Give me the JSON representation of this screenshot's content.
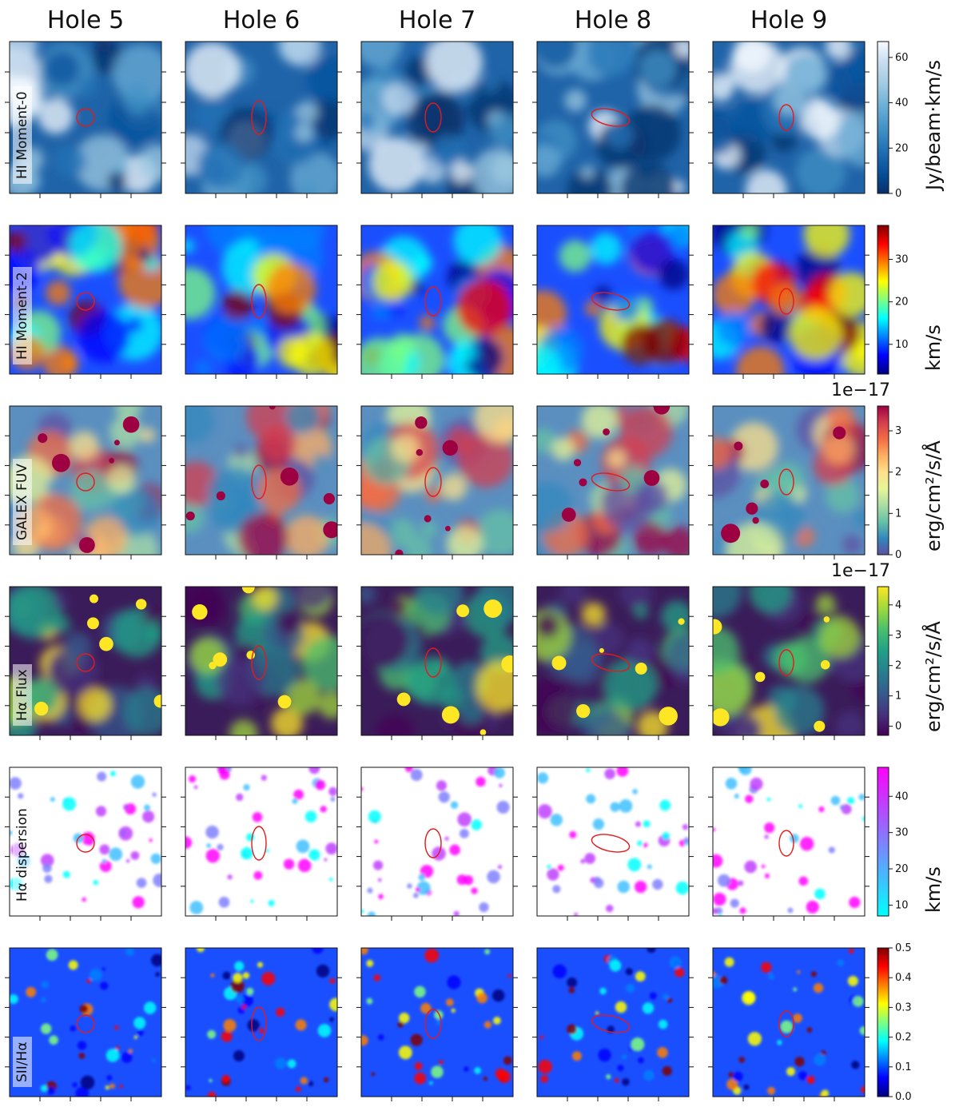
{
  "chart_data": {
    "type": "heatmap",
    "description_columns": [
      "Hole 5",
      "Hole 6",
      "Hole 7",
      "Hole 8",
      "Hole 9"
    ],
    "rows": [
      {
        "label": "HI Moment-0",
        "colormap": "Blues_r",
        "colorbar": {
          "unit": "Jy/beam·km/s",
          "range": [
            0,
            67
          ],
          "ticks": [
            0,
            20,
            40,
            60
          ],
          "tick_labels": [
            "0",
            "20",
            "40",
            "60"
          ],
          "exponent": ""
        }
      },
      {
        "label": "HI Moment-2",
        "colormap": "jet",
        "colorbar": {
          "unit": "km/s",
          "range": [
            3,
            38
          ],
          "ticks": [
            10,
            20,
            30
          ],
          "tick_labels": [
            "10",
            "20",
            "30"
          ],
          "exponent": ""
        }
      },
      {
        "label": "GALEX FUV",
        "colormap": "Spectral_r",
        "colorbar": {
          "unit": "erg/cm²/s/Å",
          "range": [
            0,
            3.6
          ],
          "ticks": [
            0,
            1,
            2,
            3
          ],
          "tick_labels": [
            "0",
            "1",
            "2",
            "3"
          ],
          "exponent": "1e−17"
        }
      },
      {
        "label": "Hα Flux",
        "colormap": "viridis",
        "colorbar": {
          "unit": "erg/cm²/s/Å",
          "range": [
            -0.3,
            4.6
          ],
          "ticks": [
            0,
            1,
            2,
            3,
            4
          ],
          "tick_labels": [
            "0",
            "1",
            "2",
            "3",
            "4"
          ],
          "exponent": "1e−17"
        }
      },
      {
        "label": "Hα dispersion",
        "colormap": "cool",
        "colorbar": {
          "unit": "km/s",
          "range": [
            7,
            48
          ],
          "ticks": [
            10,
            20,
            30,
            40
          ],
          "tick_labels": [
            "10",
            "20",
            "30",
            "40"
          ],
          "exponent": ""
        }
      },
      {
        "label": "SII/Hα",
        "colormap": "jet",
        "colorbar": {
          "unit": "",
          "range": [
            0,
            0.5
          ],
          "ticks": [
            0,
            0.1,
            0.2,
            0.3,
            0.4,
            0.5
          ],
          "tick_labels": [
            "0.0",
            "0.1",
            "0.2",
            "0.3",
            "0.4",
            "0.5"
          ],
          "exponent": ""
        }
      }
    ],
    "holes": [
      {
        "name": "Hole 5",
        "ellipse_shape": "small circle"
      },
      {
        "name": "Hole 6",
        "ellipse_shape": "tall ellipse"
      },
      {
        "name": "Hole 7",
        "ellipse_shape": "tall ellipse"
      },
      {
        "name": "Hole 8",
        "ellipse_shape": "wide tilted ellipse"
      },
      {
        "name": "Hole 9",
        "ellipse_shape": "tall ellipse"
      }
    ],
    "overlay": {
      "marker": "red ellipse outlining HI hole",
      "color": "#e41a1c"
    }
  }
}
